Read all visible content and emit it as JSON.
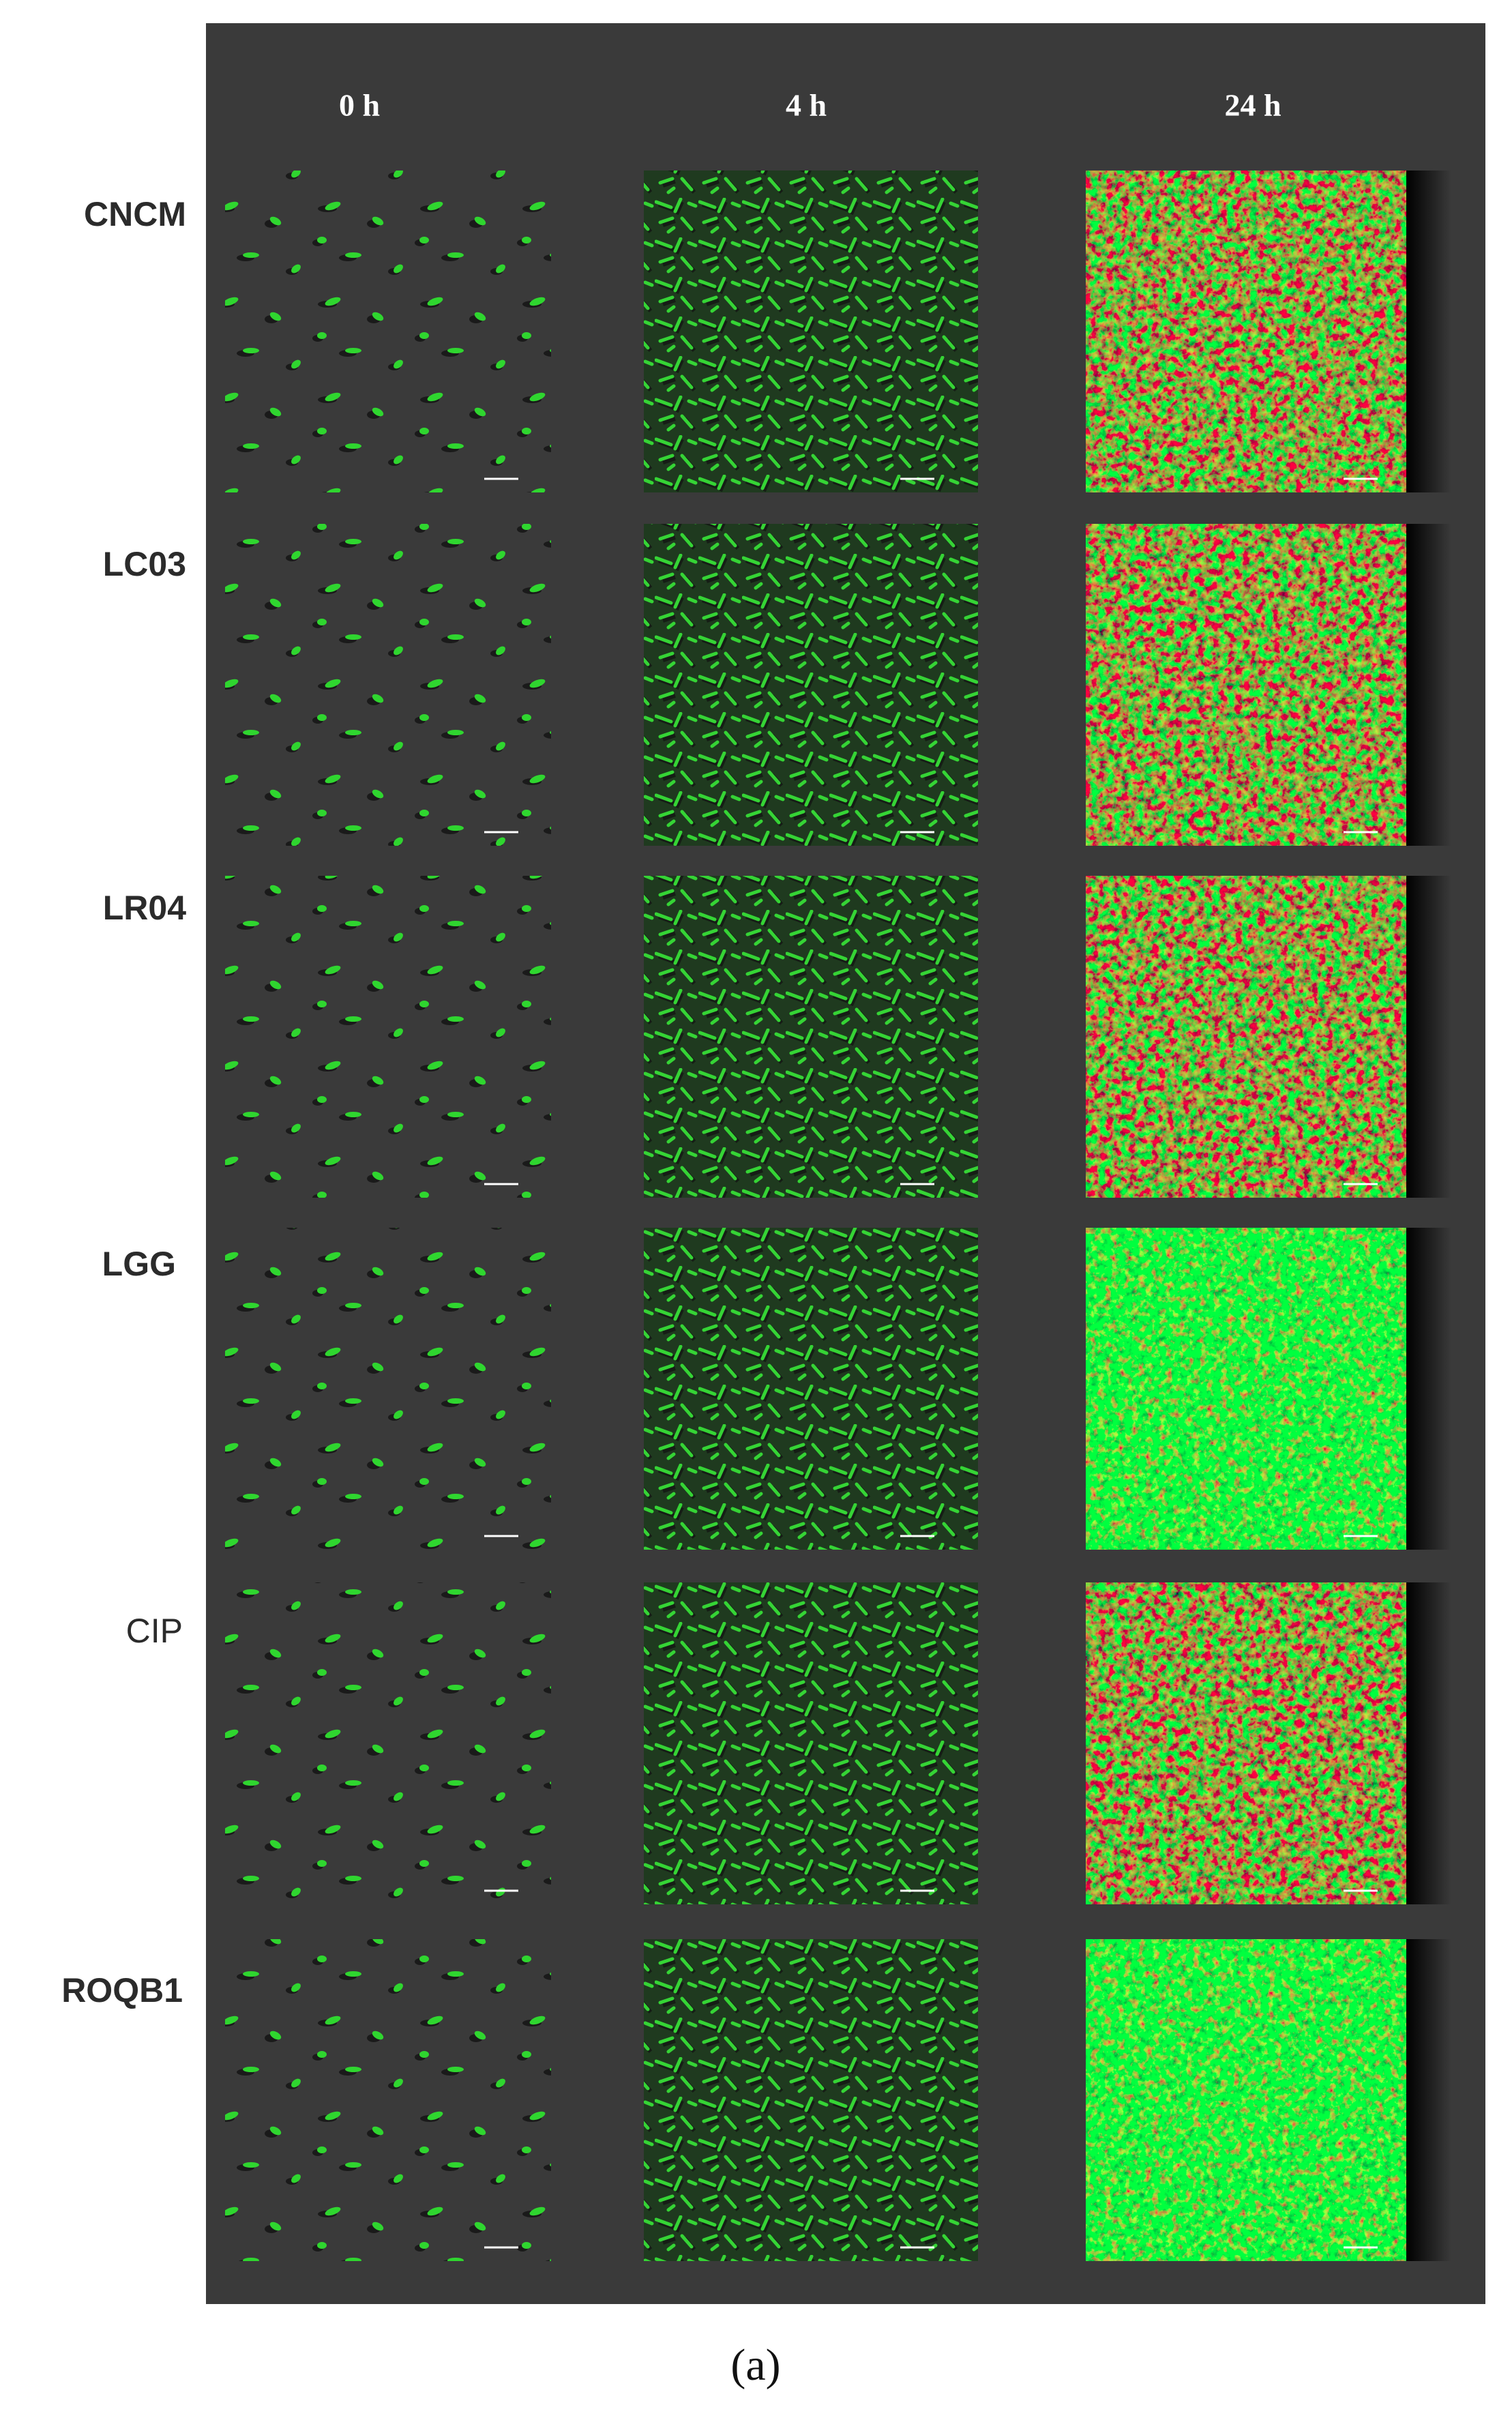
{
  "columns": [
    "0 h",
    "4 h",
    "24 h"
  ],
  "rows": [
    "CNCM",
    "LC03",
    "LR04",
    "LGG",
    "CIP",
    "ROQB1"
  ],
  "caption": "(a)"
}
